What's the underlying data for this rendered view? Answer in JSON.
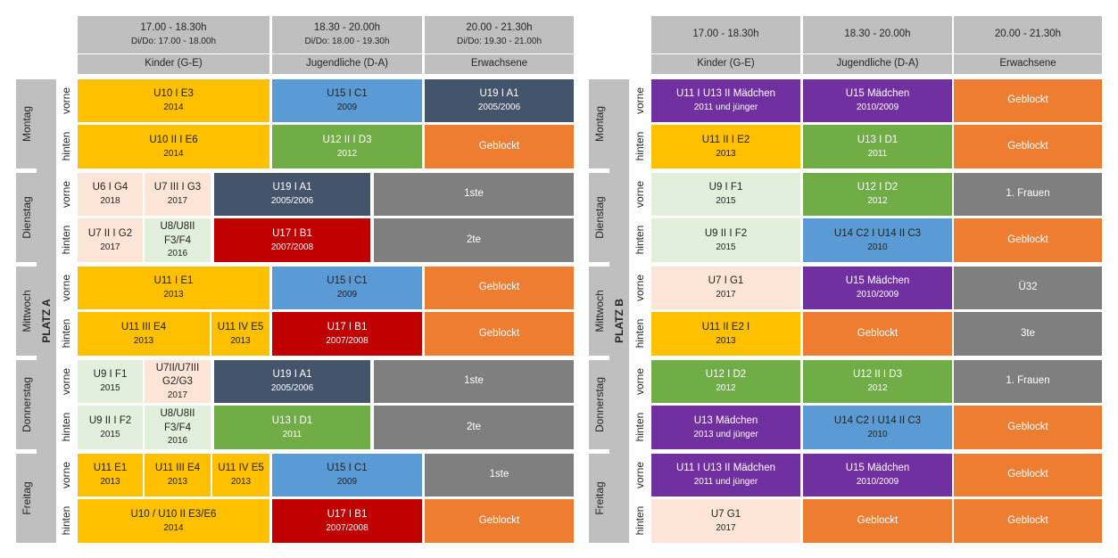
{
  "colors": {
    "yellow": "#ffc000",
    "blue": "#5b9bd5",
    "navy": "#44546a",
    "orange": "#ed7d31",
    "green": "#70ad47",
    "red": "#c00000",
    "gray": "#7f7f7f",
    "lightgreen": "#e2efda",
    "peach": "#fce4d6",
    "purple": "#7030a0",
    "header": "#bfbfbf"
  },
  "positions": {
    "vorne": "vorne",
    "hinten": "hinten"
  },
  "platz_a": {
    "label": "PLATZ A",
    "time_headers": [
      {
        "l1": "17.00 - 18.30h",
        "l2": "Di/Do: 17.00 - 18.00h"
      },
      {
        "l1": "18.30 - 20.00h",
        "l2": "Di/Do: 18.00 - 19.30h"
      },
      {
        "l1": "20.00 - 21.30h",
        "l2": "Di/Do: 19.30 - 21.00h"
      }
    ],
    "group_headers": [
      "Kinder (G-E)",
      "Jugendliche (D-A)",
      "Erwachsene"
    ],
    "days": [
      "Montag",
      "Dienstag",
      "Mittwoch",
      "Donnerstag",
      "Freitag"
    ],
    "cells": [
      {
        "l1": "U10 I E3",
        "l2": "2014"
      },
      {
        "l1": "U15 I C1",
        "l2": "2009"
      },
      {
        "l1": "U19 I A1",
        "l2": "2005/2006"
      },
      {
        "l1": "U10 II I E6",
        "l2": "2014"
      },
      {
        "l1": "U12 II I D3",
        "l2": "2012"
      },
      {
        "l1": "Geblockt",
        "l2": ""
      },
      {
        "l1": "U6 I G4",
        "l2": "2018"
      },
      {
        "l1": "U7 III I G3",
        "l2": "2017"
      },
      {
        "l1": "U19 I A1",
        "l2": "2005/2006"
      },
      {
        "l1": "1ste",
        "l2": ""
      },
      {
        "l1": "U7 II I G2",
        "l2": "2017"
      },
      {
        "l1": "U8/U8II",
        "l1b": "F3/F4",
        "l2": "2016"
      },
      {
        "l1": "U17 I B1",
        "l2": "2007/2008"
      },
      {
        "l1": "2te",
        "l2": ""
      },
      {
        "l1": "U11 I E1",
        "l2": "2013"
      },
      {
        "l1": "U15 I C1",
        "l2": "2009"
      },
      {
        "l1": "Geblockt",
        "l2": ""
      },
      {
        "l1": "U11 III E4",
        "l2": "2013"
      },
      {
        "l1": "U11 IV E5",
        "l2": "2013"
      },
      {
        "l1": "U17 I B1",
        "l2": "2007/2008"
      },
      {
        "l1": "Geblockt",
        "l2": ""
      },
      {
        "l1": "U9 I F1",
        "l2": "2015"
      },
      {
        "l1": "U7II/U7III",
        "l1b": "G2/G3",
        "l2": "2017"
      },
      {
        "l1": "U19 I A1",
        "l2": "2005/2006"
      },
      {
        "l1": "1ste",
        "l2": ""
      },
      {
        "l1": "U9 II I F2",
        "l2": "2015"
      },
      {
        "l1": "U8/U8II",
        "l1b": "F3/F4",
        "l2": "2016"
      },
      {
        "l1": "U13 I D1",
        "l2": "2011"
      },
      {
        "l1": "2te",
        "l2": ""
      },
      {
        "l1": "U11 E1",
        "l2": "2013"
      },
      {
        "l1": "U11 III E4",
        "l2": "2013"
      },
      {
        "l1": "U11 IV E5",
        "l2": "2013"
      },
      {
        "l1": "U15 I C1",
        "l2": "2009"
      },
      {
        "l1": "1ste",
        "l2": ""
      },
      {
        "l1": "U10 / U10 II E3/E6",
        "l2": "2014"
      },
      {
        "l1": "U17 I B1",
        "l2": "2007/2008"
      },
      {
        "l1": "Geblockt",
        "l2": ""
      }
    ]
  },
  "platz_b": {
    "label": "PLATZ B",
    "time_headers": [
      {
        "l1": "17.00 - 18.30h"
      },
      {
        "l1": "18.30 - 20.00h"
      },
      {
        "l1": "20.00 - 21.30h"
      }
    ],
    "group_headers": [
      "Kinder (G-E)",
      "Jugendliche (D-A)",
      "Erwachsene"
    ],
    "days": [
      "Montag",
      "Dienstag",
      "Mittwoch",
      "Donnerstag",
      "Freitag"
    ],
    "cells": [
      {
        "l1": "U11 I U13 II Mädchen",
        "l2": "2011 und jünger"
      },
      {
        "l1": "U15 Mädchen",
        "l2": "2010/2009"
      },
      {
        "l1": "Geblockt",
        "l2": ""
      },
      {
        "l1": "U11 II I E2",
        "l2": "2013"
      },
      {
        "l1": "U13 I D1",
        "l2": "2011"
      },
      {
        "l1": "Geblockt",
        "l2": ""
      },
      {
        "l1": "U9 I F1",
        "l2": "2015"
      },
      {
        "l1": "U12 I D2",
        "l2": "2012"
      },
      {
        "l1": "1. Frauen",
        "l2": ""
      },
      {
        "l1": "U9 II I F2",
        "l2": "2015"
      },
      {
        "l1": "U14 C2 I U14 II C3",
        "l2": "2010"
      },
      {
        "l1": "Geblockt",
        "l2": ""
      },
      {
        "l1": "U7 I G1",
        "l2": "2017"
      },
      {
        "l1": "U15 Mädchen",
        "l2": "2010/2009"
      },
      {
        "l1": "Ü32",
        "l2": ""
      },
      {
        "l1": "U11 II E2 I",
        "l2": "2013"
      },
      {
        "l1": "Geblockt",
        "l2": ""
      },
      {
        "l1": "3te",
        "l2": ""
      },
      {
        "l1": "U12 I D2",
        "l2": "2012"
      },
      {
        "l1": "U12 II I D3",
        "l2": "2012"
      },
      {
        "l1": "1. Frauen",
        "l2": ""
      },
      {
        "l1": "U13 Mädchen",
        "l2": "2013 und jünger"
      },
      {
        "l1": "U14 C2 I U14 II C3",
        "l2": "2010"
      },
      {
        "l1": "Geblockt",
        "l2": ""
      },
      {
        "l1": "U11 I U13 II Mädchen",
        "l2": "2011 und jünger"
      },
      {
        "l1": "U15 Mädchen",
        "l2": "2010/2009"
      },
      {
        "l1": "Geblockt",
        "l2": ""
      },
      {
        "l1": "U7 G1",
        "l2": "2017"
      },
      {
        "l1": "Geblockt",
        "l2": ""
      },
      {
        "l1": "Geblockt",
        "l2": ""
      }
    ]
  }
}
